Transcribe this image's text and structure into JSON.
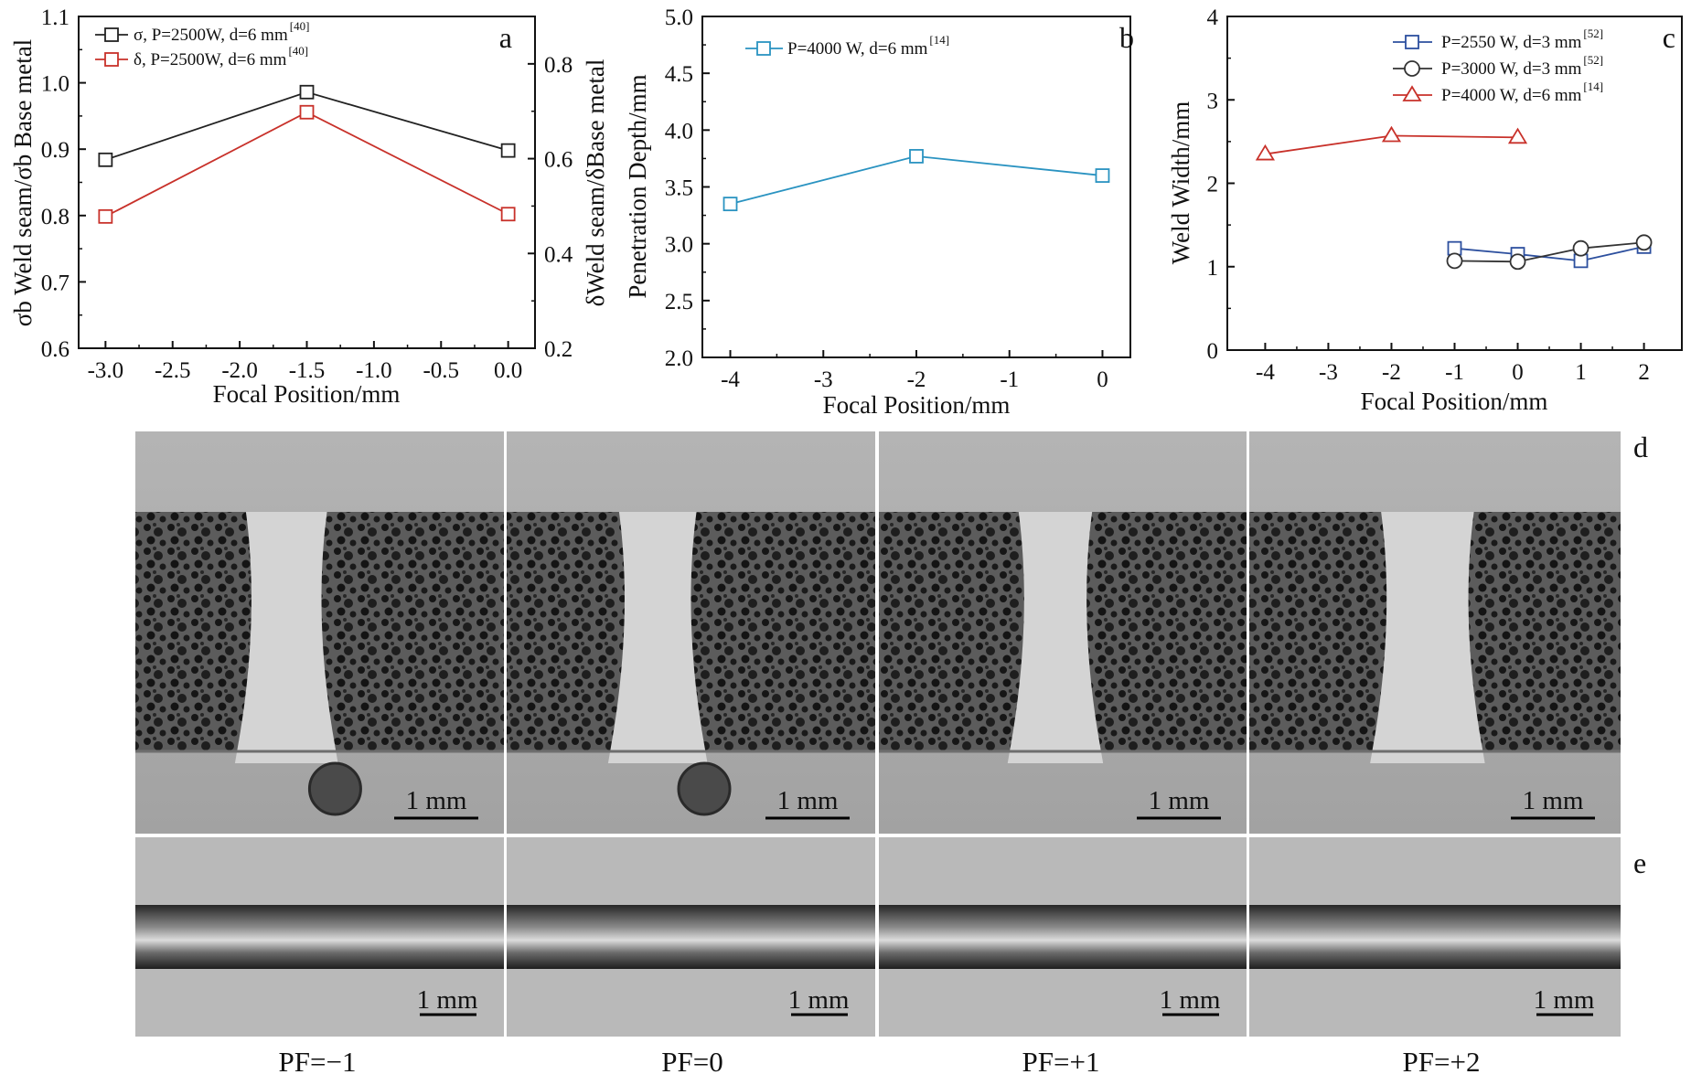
{
  "chart_data": [
    {
      "id": "a",
      "panel_label": "a",
      "type": "line",
      "xlabel": "Focal Position/mm",
      "ylabel": "σb Weld seam/σb Base metal",
      "ylabel_right": "δWeld seam/δBase metal",
      "xlim": [
        -3.2,
        0.2
      ],
      "ylim": [
        0.6,
        1.1
      ],
      "ylim_right": [
        0.2,
        0.9
      ],
      "xticks": [
        -3.0,
        -2.5,
        -2.0,
        -1.5,
        -1.0,
        -0.5,
        0.0
      ],
      "xtick_labels": [
        "-3.0",
        "-2.5",
        "-2.0",
        "-1.5",
        "-1.0",
        "-0.5",
        "0.0"
      ],
      "yticks": [
        0.6,
        0.7,
        0.8,
        0.9,
        1.0,
        1.1
      ],
      "ytick_labels": [
        "0.6",
        "0.7",
        "0.8",
        "0.9",
        "1.0",
        "1.1"
      ],
      "yticks_right": [
        0.2,
        0.4,
        0.6,
        0.8
      ],
      "ytick_labels_right": [
        "0.2",
        "0.4",
        "0.6",
        "0.8"
      ],
      "legend_position": "top-left",
      "series": [
        {
          "name": "σ, P=2500W, d=6 mm",
          "ref": "[40]",
          "color": "#222222",
          "marker": "square",
          "axis": "left",
          "x": [
            -3.0,
            -1.5,
            0.0
          ],
          "y": [
            0.884,
            0.986,
            0.898
          ]
        },
        {
          "name": "δ, P=2500W, d=6 mm",
          "ref": "[40]",
          "color": "#c8312a",
          "marker": "square",
          "axis": "right",
          "x": [
            -3.0,
            -1.5,
            0.0
          ],
          "y": [
            0.478,
            0.698,
            0.483
          ]
        }
      ]
    },
    {
      "id": "b",
      "panel_label": "b",
      "type": "line",
      "xlabel": "Focal Position/mm",
      "ylabel": "Penetration Depth/mm",
      "xlim": [
        -4.3,
        0.3
      ],
      "ylim": [
        2.0,
        5.0
      ],
      "xticks": [
        -4,
        -3,
        -2,
        -1,
        0
      ],
      "xtick_labels": [
        "-4",
        "-3",
        "-2",
        "-1",
        "0"
      ],
      "yticks": [
        2.0,
        2.5,
        3.0,
        3.5,
        4.0,
        4.5,
        5.0
      ],
      "ytick_labels": [
        "2.0",
        "2.5",
        "3.0",
        "3.5",
        "4.0",
        "4.5",
        "5.0"
      ],
      "legend_position": "top-left",
      "series": [
        {
          "name": "P=4000 W, d=6 mm",
          "ref": "[14]",
          "color": "#2a93c1",
          "marker": "square",
          "axis": "left",
          "x": [
            -4,
            -2,
            0
          ],
          "y": [
            3.35,
            3.77,
            3.6
          ]
        }
      ]
    },
    {
      "id": "c",
      "panel_label": "c",
      "type": "line",
      "xlabel": "Focal Position/mm",
      "ylabel": "Weld Width/mm",
      "xlim": [
        -4.6,
        2.6
      ],
      "ylim": [
        0,
        4
      ],
      "xticks": [
        -4,
        -3,
        -2,
        -1,
        0,
        1,
        2
      ],
      "xtick_labels": [
        "-4",
        "-3",
        "-2",
        "-1",
        "0",
        "1",
        "2"
      ],
      "yticks": [
        0,
        1,
        2,
        3,
        4
      ],
      "ytick_labels": [
        "0",
        "1",
        "2",
        "3",
        "4"
      ],
      "legend_position": "top-right",
      "series": [
        {
          "name": "P=2550 W, d=3 mm",
          "ref": "[52]",
          "color": "#2c4f9e",
          "marker": "square",
          "axis": "left",
          "x": [
            -1,
            0,
            1,
            2
          ],
          "y": [
            1.22,
            1.15,
            1.07,
            1.24
          ]
        },
        {
          "name": "P=3000 W, d=3 mm",
          "ref": "[52]",
          "color": "#333333",
          "marker": "circle",
          "axis": "left",
          "x": [
            -1,
            0,
            1,
            2
          ],
          "y": [
            1.07,
            1.06,
            1.22,
            1.29
          ]
        },
        {
          "name": "P=4000 W, d=6 mm",
          "ref": "[14]",
          "color": "#c8312a",
          "marker": "triangle",
          "axis": "left",
          "x": [
            -4,
            -2,
            0
          ],
          "y": [
            2.35,
            2.57,
            2.55
          ]
        }
      ]
    }
  ],
  "micrographs": {
    "row_d_label": "d",
    "row_e_label": "e",
    "scale_bar_label": "1 mm",
    "cross_section_fusion_width_fraction": [
      0.22,
      0.21,
      0.2,
      0.25
    ],
    "pf_labels": [
      "PF=−1",
      "PF=0",
      "PF=+1",
      "PF=+2"
    ]
  }
}
